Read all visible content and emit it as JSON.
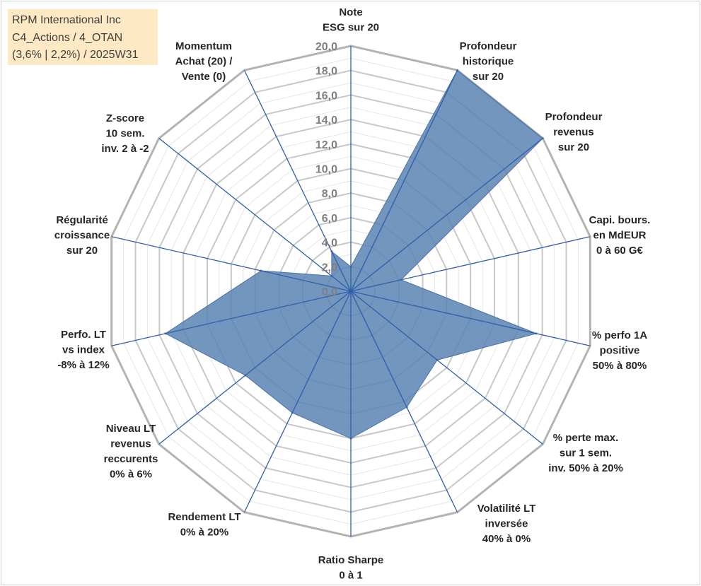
{
  "title_lines": [
    "RPM International Inc",
    "C4_Actions / 4_OTAN",
    "(3,6% | 2,2%) / 2025W31"
  ],
  "chart_data": {
    "type": "radar",
    "title": "RPM International Inc C4_Actions / 4_OTAN (3,6% | 2,2%) / 2025W31",
    "rlim": [
      0,
      20
    ],
    "rticks": [
      "0,0",
      "2,0",
      "4,0",
      "6,0",
      "8,0",
      "10,0",
      "12,0",
      "14,0",
      "16,0",
      "18,0",
      "20,0"
    ],
    "grid": true,
    "fill_color": "#5b84b4",
    "grid_color": "#bfbfbf",
    "spoke_color": "#2e5fa8",
    "axes": [
      {
        "key": "esg",
        "label": [
          "Note",
          "ESG sur 20"
        ]
      },
      {
        "key": "prof_hist",
        "label": [
          "Profondeur",
          "historique",
          "sur 20"
        ]
      },
      {
        "key": "prof_rev",
        "label": [
          "Profondeur",
          "revenus",
          "sur 20"
        ]
      },
      {
        "key": "capi",
        "label": [
          "Capi. bours.",
          "en MdEUR",
          "0 à 60 G€"
        ]
      },
      {
        "key": "perfo_1a",
        "label": [
          "% perfo 1A",
          "positive",
          "50% à 80%"
        ]
      },
      {
        "key": "perte_max",
        "label": [
          "% perte max.",
          "sur 1 sem.",
          "inv. 50% à 20%"
        ]
      },
      {
        "key": "volatilite",
        "label": [
          "Volatilité LT",
          "inversée",
          "40% à 0%"
        ]
      },
      {
        "key": "sharpe",
        "label": [
          "Ratio Sharpe",
          "0 à 1"
        ]
      },
      {
        "key": "rendement",
        "label": [
          "Rendement LT",
          "0% à 20%"
        ]
      },
      {
        "key": "niveau_rev",
        "label": [
          "Niveau LT",
          "revenus",
          "reccurents",
          "0% à 6%"
        ]
      },
      {
        "key": "perfo_lt",
        "label": [
          "Perfo. LT",
          "vs index",
          "-8% à 12%"
        ]
      },
      {
        "key": "regularite",
        "label": [
          "Régularité",
          "croissance",
          "sur 20"
        ]
      },
      {
        "key": "zscore",
        "label": [
          "Z-score",
          "10 sem.",
          "inv. 2 à -2"
        ]
      },
      {
        "key": "momentum",
        "label": [
          "Momentum",
          "Achat (20) /",
          "Vente (0)"
        ]
      }
    ],
    "series": [
      {
        "values": [
          2.0,
          20.0,
          20.0,
          4.2,
          15.5,
          9.0,
          10.5,
          12.0,
          11.0,
          11.0,
          15.5,
          7.5,
          2.0,
          3.6
        ]
      }
    ]
  }
}
